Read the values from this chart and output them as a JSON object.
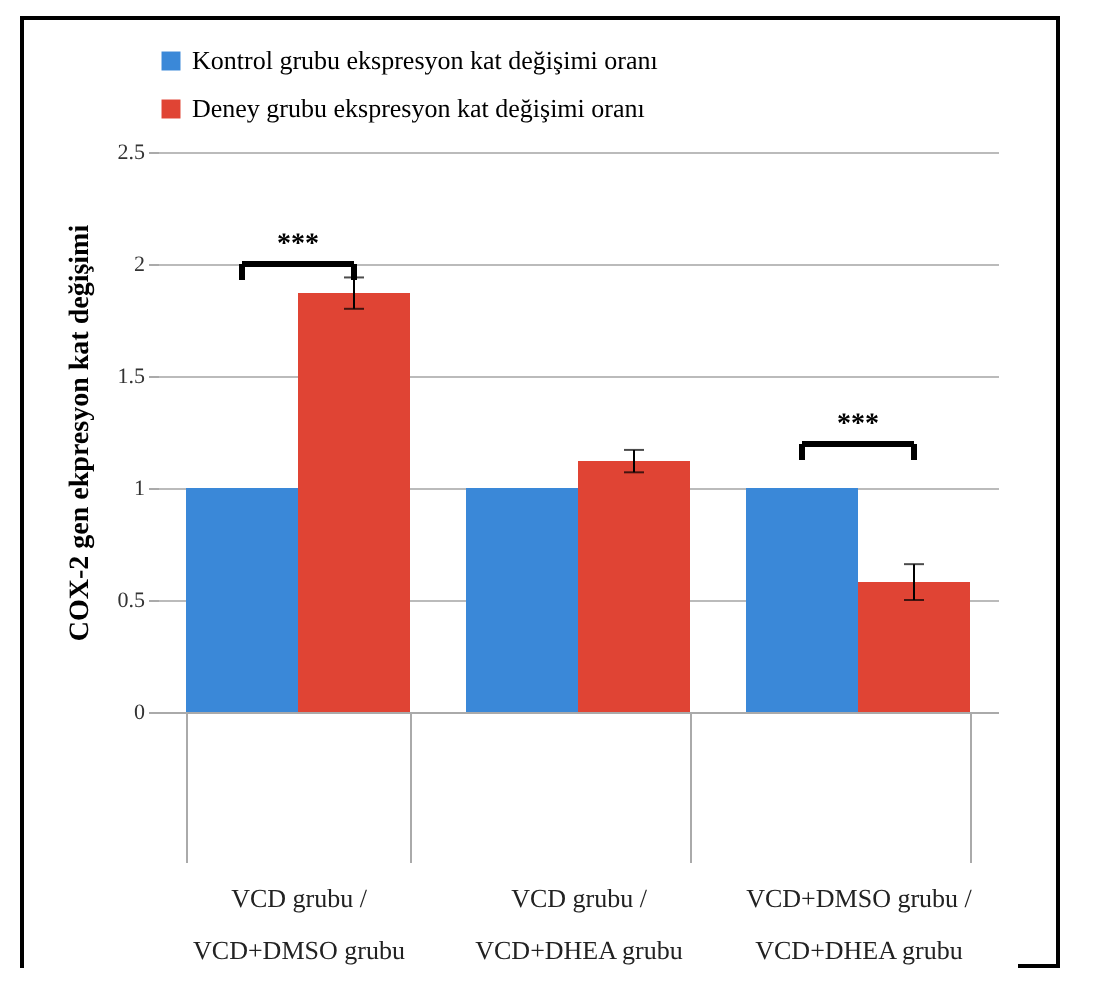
{
  "chart_data": {
    "type": "bar",
    "ylabel": "COX-2 gen ekpresyon kat değişimi",
    "categories": [
      "VCD grubu / VCD+DMSO grubu",
      "VCD grubu / VCD+DHEA grubu",
      "VCD+DMSO grubu / VCD+DHEA grubu"
    ],
    "series": [
      {
        "name": "Kontrol grubu ekspresyon kat değişimi oranı",
        "color": "#3a88d8",
        "values": [
          1,
          1,
          1
        ]
      },
      {
        "name": "Deney grubu ekspresyon kat değişimi oranı",
        "color": "#e04434",
        "values": [
          1.87,
          1.12,
          0.58
        ],
        "errors": [
          0.07,
          0.05,
          0.08
        ]
      }
    ],
    "ylim": [
      0,
      2.5
    ],
    "yticks": [
      0,
      0.5,
      1,
      1.5,
      2,
      2.5
    ],
    "grid": "y",
    "legend": "top",
    "annotations": [
      "***",
      "***"
    ]
  }
}
